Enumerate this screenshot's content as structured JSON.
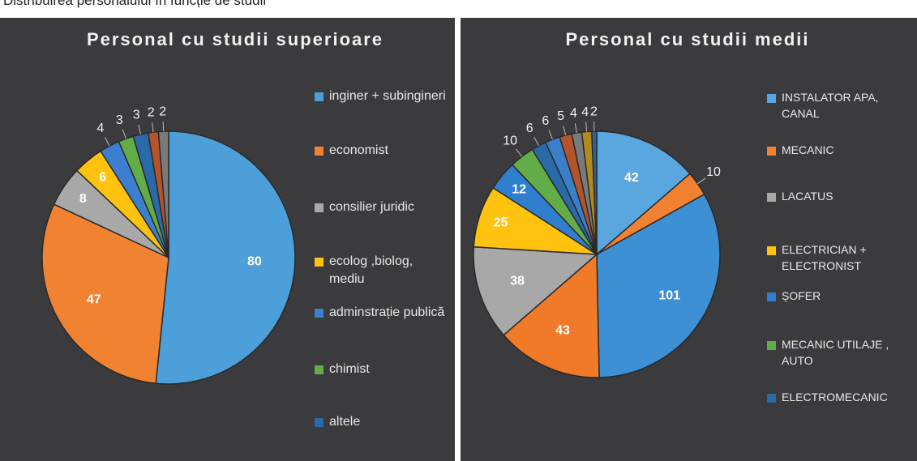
{
  "page_title": "Distribuirea personalului în funcție de studii",
  "chart_data": [
    {
      "type": "pie",
      "title": "Personal cu studii superioare",
      "values": [
        80,
        47,
        8,
        6,
        4,
        3,
        3,
        2,
        2
      ],
      "colors": [
        "#4c9fd9",
        "#f08232",
        "#a8a8a8",
        "#ffc20e",
        "#3c7fcf",
        "#62ad48",
        "#2b6aa8",
        "#b5542b",
        "#7a7a7a"
      ],
      "legend": [
        {
          "label": "inginer + subingineri",
          "color": "#4c9fd9"
        },
        {
          "label": "economist",
          "color": "#f08232"
        },
        {
          "label": "consilier juridic",
          "color": "#a8a8a8"
        },
        {
          "label": "ecolog ,biolog, mediu",
          "color": "#ffc20e"
        },
        {
          "label": "adminstrație publică",
          "color": "#3c7fcf"
        },
        {
          "label": "chimist",
          "color": "#62ad48"
        },
        {
          "label": "altele",
          "color": "#2b6aa8"
        }
      ]
    },
    {
      "type": "pie",
      "title": "Personal cu studii medii",
      "values": [
        42,
        10,
        101,
        43,
        38,
        25,
        12,
        10,
        6,
        6,
        5,
        4,
        4,
        2
      ],
      "colors": [
        "#5aa6df",
        "#f08232",
        "#3d90d4",
        "#f07a28",
        "#a8a8a8",
        "#ffc20e",
        "#2f7fce",
        "#62ad48",
        "#2b6aa8",
        "#3a80c9",
        "#b5542b",
        "#7a7a7a",
        "#b08a1c",
        "#2e5f9a"
      ],
      "legend": [
        {
          "label": "INSTALATOR APA, CANAL",
          "color": "#5aa6df"
        },
        {
          "label": "MECANIC",
          "color": "#f08232"
        },
        {
          "label": "LACATUS",
          "color": "#a8a8a8"
        },
        {
          "label": "ELECTRICIAN + ELECTRONIST",
          "color": "#ffc20e"
        },
        {
          "label": "ȘOFER",
          "color": "#2f7fce"
        },
        {
          "label": "MECANIC UTILAJE , AUTO",
          "color": "#62ad48"
        },
        {
          "label": "ELECTROMECANIC",
          "color": "#2b6aa8"
        }
      ]
    }
  ]
}
